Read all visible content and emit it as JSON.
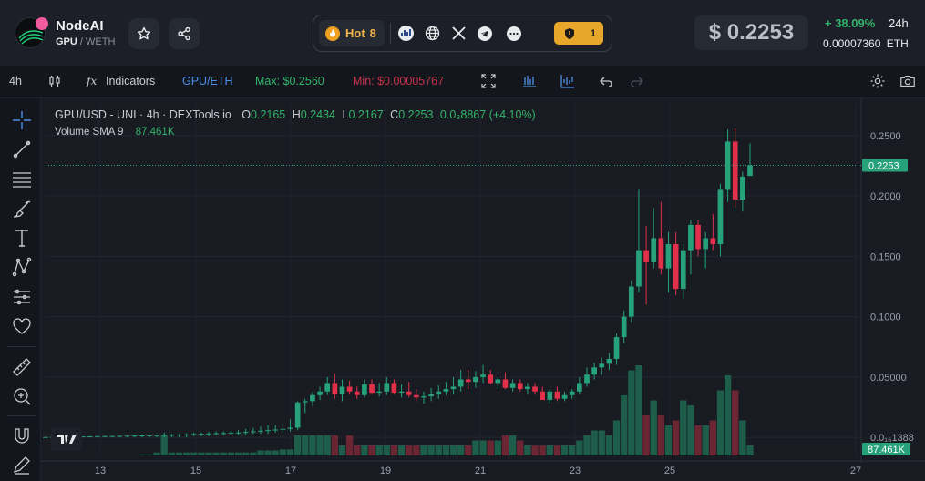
{
  "header": {
    "token_name": "NodeAI",
    "pair_base": "GPU",
    "pair_quote": "/ WETH",
    "hot_label": "Hot",
    "hot_rank": "8",
    "alert_count": "1",
    "price": "$ 0.2253",
    "change": "+ 38.09%",
    "change_period": "24h",
    "eth_price": "0.00007360",
    "eth_unit": "ETH",
    "colors": {
      "accent_green": "#33b36a",
      "accent_red": "#e0304a",
      "alert_yellow": "#e8a72a",
      "badge_pink": "#f25aa0"
    }
  },
  "toolbar": {
    "interval": "4h",
    "indicators_label": "Indicators",
    "pair_label": "GPU/ETH",
    "max_label": "Max: $0.2560",
    "min_label": "Min: $0.00005767"
  },
  "chart_title": {
    "symbol": "GPU/USD - UNI · 4h · DEXTools.io",
    "o_label": "O",
    "o": "0.2165",
    "h_label": "H",
    "h": "0.2434",
    "l_label": "L",
    "l": "0.2167",
    "c_label": "C",
    "c": "0.2253",
    "delta": "0.0₃8867 (+4.10%)",
    "volume_label": "Volume SMA 9",
    "volume_value": "87.461K"
  },
  "chart_data": {
    "type": "candlestick",
    "title": "GPU/USD - UNI · 4h · DEXTools.io",
    "x_tick_labels": [
      "13",
      "15",
      "17",
      "19",
      "21",
      "23",
      "25",
      "27"
    ],
    "y_tick_labels": [
      "0.2500",
      "0.2000",
      "0.1500",
      "0.1000",
      "0.05000",
      "0.0₁₆1388"
    ],
    "y_ticks": [
      0.25,
      0.2,
      0.15,
      0.1,
      0.05,
      0.0
    ],
    "ylim": [
      -0.015,
      0.277
    ],
    "last_price": 0.2253,
    "last_price_label": "0.2253",
    "volume_label": "87.461K",
    "grid": true,
    "colors": {
      "up": "#26a17a",
      "down": "#e0304a",
      "volume_up": "#1e5d4a",
      "volume_down": "#6b2634"
    },
    "candles": [
      {
        "o": 0.0,
        "h": 0.0005,
        "l": 0.0,
        "c": 0.0003,
        "v": 0.0
      },
      {
        "o": 0.0003,
        "h": 0.0005,
        "l": 0.0,
        "c": 0.0004,
        "v": 0.0
      },
      {
        "o": 0.0004,
        "h": 0.0006,
        "l": 0.0,
        "c": 0.0005,
        "v": 0.0
      },
      {
        "o": 0.0005,
        "h": 0.0007,
        "l": 0.0,
        "c": 0.0006,
        "v": 0.0
      },
      {
        "o": 0.0006,
        "h": 0.0008,
        "l": 0.0,
        "c": 0.0007,
        "v": 0.0
      },
      {
        "o": 0.0007,
        "h": 0.0008,
        "l": 0.0,
        "c": 0.0008,
        "v": 0.0
      },
      {
        "o": 0.0008,
        "h": 0.0009,
        "l": 0.0,
        "c": 0.0009,
        "v": 0.0
      },
      {
        "o": 0.0009,
        "h": 0.001,
        "l": 0.0,
        "c": 0.001,
        "v": 0.0
      },
      {
        "o": 0.001,
        "h": 0.0011,
        "l": 0.0,
        "c": 0.0011,
        "v": 0.0
      },
      {
        "o": 0.0011,
        "h": 0.0012,
        "l": 0.0,
        "c": 0.0012,
        "v": 0.0
      },
      {
        "o": 0.0012,
        "h": 0.0013,
        "l": 0.0,
        "c": 0.0013,
        "v": 0.0
      },
      {
        "o": 0.0013,
        "h": 0.0014,
        "l": 0.0,
        "c": 0.0014,
        "v": 0.0
      },
      {
        "o": 0.0014,
        "h": 0.0015,
        "l": 0.0,
        "c": 0.0015,
        "v": 0.0
      },
      {
        "o": 0.0015,
        "h": 0.0016,
        "l": 0.0,
        "c": 0.0016,
        "v": 0.01
      },
      {
        "o": 0.0016,
        "h": 0.0017,
        "l": 0.0,
        "c": 0.0017,
        "v": 0.01
      },
      {
        "o": 0.0017,
        "h": 0.0018,
        "l": 0.0,
        "c": 0.0018,
        "v": 0.03
      },
      {
        "o": 0.0018,
        "h": 0.004,
        "l": 0.0,
        "c": 0.002,
        "v": 0.2
      },
      {
        "o": 0.002,
        "h": 0.003,
        "l": 0.0,
        "c": 0.0021,
        "v": 0.03
      },
      {
        "o": 0.0021,
        "h": 0.003,
        "l": 0.0,
        "c": 0.0023,
        "v": 0.03
      },
      {
        "o": 0.0023,
        "h": 0.0035,
        "l": 0.0,
        "c": 0.0024,
        "v": 0.03
      },
      {
        "o": 0.0024,
        "h": 0.004,
        "l": 0.001,
        "c": 0.0028,
        "v": 0.03
      },
      {
        "o": 0.0028,
        "h": 0.004,
        "l": 0.001,
        "c": 0.003,
        "v": 0.03
      },
      {
        "o": 0.003,
        "h": 0.0045,
        "l": 0.001,
        "c": 0.0032,
        "v": 0.03
      },
      {
        "o": 0.0032,
        "h": 0.005,
        "l": 0.002,
        "c": 0.0034,
        "v": 0.03
      },
      {
        "o": 0.0034,
        "h": 0.005,
        "l": 0.002,
        "c": 0.0036,
        "v": 0.03
      },
      {
        "o": 0.0036,
        "h": 0.0055,
        "l": 0.002,
        "c": 0.0038,
        "v": 0.03
      },
      {
        "o": 0.0038,
        "h": 0.006,
        "l": 0.002,
        "c": 0.004,
        "v": 0.03
      },
      {
        "o": 0.004,
        "h": 0.007,
        "l": 0.002,
        "c": 0.0045,
        "v": 0.03
      },
      {
        "o": 0.0045,
        "h": 0.008,
        "l": 0.003,
        "c": 0.005,
        "v": 0.03
      },
      {
        "o": 0.005,
        "h": 0.009,
        "l": 0.003,
        "c": 0.0055,
        "v": 0.05
      },
      {
        "o": 0.0055,
        "h": 0.01,
        "l": 0.003,
        "c": 0.006,
        "v": 0.05
      },
      {
        "o": 0.006,
        "h": 0.01,
        "l": 0.004,
        "c": 0.0065,
        "v": 0.05
      },
      {
        "o": 0.0065,
        "h": 0.012,
        "l": 0.004,
        "c": 0.007,
        "v": 0.06
      },
      {
        "o": 0.007,
        "h": 0.015,
        "l": 0.005,
        "c": 0.008,
        "v": 0.06
      },
      {
        "o": 0.008,
        "h": 0.03,
        "l": 0.006,
        "c": 0.029,
        "v": 0.2
      },
      {
        "o": 0.029,
        "h": 0.032,
        "l": 0.02,
        "c": 0.03,
        "v": 0.2
      },
      {
        "o": 0.03,
        "h": 0.038,
        "l": 0.026,
        "c": 0.035,
        "v": 0.2
      },
      {
        "o": 0.035,
        "h": 0.042,
        "l": 0.031,
        "c": 0.038,
        "v": 0.2
      },
      {
        "o": 0.038,
        "h": 0.05,
        "l": 0.035,
        "c": 0.045,
        "v": 0.2
      },
      {
        "o": 0.045,
        "h": 0.053,
        "l": 0.032,
        "c": 0.036,
        "v": 0.2
      },
      {
        "o": 0.036,
        "h": 0.048,
        "l": 0.03,
        "c": 0.042,
        "v": 0.1
      },
      {
        "o": 0.042,
        "h": 0.047,
        "l": 0.036,
        "c": 0.038,
        "v": 0.2
      },
      {
        "o": 0.038,
        "h": 0.042,
        "l": 0.032,
        "c": 0.035,
        "v": 0.1
      },
      {
        "o": 0.035,
        "h": 0.048,
        "l": 0.033,
        "c": 0.044,
        "v": 0.1
      },
      {
        "o": 0.044,
        "h": 0.048,
        "l": 0.036,
        "c": 0.037,
        "v": 0.1
      },
      {
        "o": 0.037,
        "h": 0.045,
        "l": 0.034,
        "c": 0.038,
        "v": 0.1
      },
      {
        "o": 0.038,
        "h": 0.05,
        "l": 0.035,
        "c": 0.045,
        "v": 0.1
      },
      {
        "o": 0.045,
        "h": 0.048,
        "l": 0.036,
        "c": 0.037,
        "v": 0.1
      },
      {
        "o": 0.037,
        "h": 0.044,
        "l": 0.033,
        "c": 0.038,
        "v": 0.1
      },
      {
        "o": 0.038,
        "h": 0.046,
        "l": 0.033,
        "c": 0.035,
        "v": 0.1
      },
      {
        "o": 0.035,
        "h": 0.04,
        "l": 0.03,
        "c": 0.033,
        "v": 0.1
      },
      {
        "o": 0.033,
        "h": 0.038,
        "l": 0.028,
        "c": 0.034,
        "v": 0.1
      },
      {
        "o": 0.034,
        "h": 0.041,
        "l": 0.03,
        "c": 0.036,
        "v": 0.1
      },
      {
        "o": 0.036,
        "h": 0.043,
        "l": 0.032,
        "c": 0.038,
        "v": 0.1
      },
      {
        "o": 0.038,
        "h": 0.046,
        "l": 0.035,
        "c": 0.04,
        "v": 0.1
      },
      {
        "o": 0.04,
        "h": 0.05,
        "l": 0.036,
        "c": 0.042,
        "v": 0.1
      },
      {
        "o": 0.042,
        "h": 0.056,
        "l": 0.038,
        "c": 0.048,
        "v": 0.1
      },
      {
        "o": 0.048,
        "h": 0.056,
        "l": 0.04,
        "c": 0.046,
        "v": 0.1
      },
      {
        "o": 0.046,
        "h": 0.055,
        "l": 0.041,
        "c": 0.05,
        "v": 0.15
      },
      {
        "o": 0.05,
        "h": 0.06,
        "l": 0.045,
        "c": 0.052,
        "v": 0.15
      },
      {
        "o": 0.052,
        "h": 0.056,
        "l": 0.044,
        "c": 0.045,
        "v": 0.15
      },
      {
        "o": 0.045,
        "h": 0.05,
        "l": 0.04,
        "c": 0.048,
        "v": 0.15
      },
      {
        "o": 0.048,
        "h": 0.054,
        "l": 0.04,
        "c": 0.041,
        "v": 0.2
      },
      {
        "o": 0.041,
        "h": 0.048,
        "l": 0.038,
        "c": 0.045,
        "v": 0.2
      },
      {
        "o": 0.045,
        "h": 0.048,
        "l": 0.038,
        "c": 0.04,
        "v": 0.15
      },
      {
        "o": 0.04,
        "h": 0.045,
        "l": 0.036,
        "c": 0.042,
        "v": 0.1
      },
      {
        "o": 0.042,
        "h": 0.045,
        "l": 0.036,
        "c": 0.038,
        "v": 0.1
      },
      {
        "o": 0.038,
        "h": 0.042,
        "l": 0.031,
        "c": 0.031,
        "v": 0.1
      },
      {
        "o": 0.031,
        "h": 0.04,
        "l": 0.028,
        "c": 0.038,
        "v": 0.1
      },
      {
        "o": 0.038,
        "h": 0.042,
        "l": 0.03,
        "c": 0.032,
        "v": 0.1
      },
      {
        "o": 0.032,
        "h": 0.038,
        "l": 0.03,
        "c": 0.035,
        "v": 0.1
      },
      {
        "o": 0.035,
        "h": 0.04,
        "l": 0.032,
        "c": 0.038,
        "v": 0.1
      },
      {
        "o": 0.038,
        "h": 0.05,
        "l": 0.036,
        "c": 0.045,
        "v": 0.15
      },
      {
        "o": 0.045,
        "h": 0.058,
        "l": 0.042,
        "c": 0.052,
        "v": 0.2
      },
      {
        "o": 0.052,
        "h": 0.062,
        "l": 0.048,
        "c": 0.058,
        "v": 0.25
      },
      {
        "o": 0.058,
        "h": 0.066,
        "l": 0.052,
        "c": 0.061,
        "v": 0.25
      },
      {
        "o": 0.061,
        "h": 0.07,
        "l": 0.056,
        "c": 0.065,
        "v": 0.2
      },
      {
        "o": 0.065,
        "h": 0.086,
        "l": 0.06,
        "c": 0.083,
        "v": 0.35
      },
      {
        "o": 0.083,
        "h": 0.105,
        "l": 0.078,
        "c": 0.1,
        "v": 0.6
      },
      {
        "o": 0.1,
        "h": 0.13,
        "l": 0.095,
        "c": 0.125,
        "v": 0.85
      },
      {
        "o": 0.125,
        "h": 0.205,
        "l": 0.12,
        "c": 0.155,
        "v": 0.9
      },
      {
        "o": 0.155,
        "h": 0.175,
        "l": 0.11,
        "c": 0.145,
        "v": 0.4
      },
      {
        "o": 0.145,
        "h": 0.19,
        "l": 0.14,
        "c": 0.165,
        "v": 0.55
      },
      {
        "o": 0.165,
        "h": 0.195,
        "l": 0.135,
        "c": 0.14,
        "v": 0.4
      },
      {
        "o": 0.14,
        "h": 0.17,
        "l": 0.12,
        "c": 0.16,
        "v": 0.3
      },
      {
        "o": 0.16,
        "h": 0.17,
        "l": 0.118,
        "c": 0.123,
        "v": 0.35
      },
      {
        "o": 0.123,
        "h": 0.16,
        "l": 0.115,
        "c": 0.155,
        "v": 0.55
      },
      {
        "o": 0.155,
        "h": 0.18,
        "l": 0.135,
        "c": 0.176,
        "v": 0.5
      },
      {
        "o": 0.176,
        "h": 0.18,
        "l": 0.15,
        "c": 0.156,
        "v": 0.3
      },
      {
        "o": 0.156,
        "h": 0.17,
        "l": 0.14,
        "c": 0.165,
        "v": 0.3
      },
      {
        "o": 0.165,
        "h": 0.185,
        "l": 0.155,
        "c": 0.16,
        "v": 0.35
      },
      {
        "o": 0.16,
        "h": 0.21,
        "l": 0.15,
        "c": 0.205,
        "v": 0.65
      },
      {
        "o": 0.205,
        "h": 0.255,
        "l": 0.195,
        "c": 0.245,
        "v": 0.8
      },
      {
        "o": 0.245,
        "h": 0.256,
        "l": 0.19,
        "c": 0.197,
        "v": 0.65
      },
      {
        "o": 0.197,
        "h": 0.22,
        "l": 0.187,
        "c": 0.216,
        "v": 0.35
      },
      {
        "o": 0.2165,
        "h": 0.2434,
        "l": 0.2167,
        "c": 0.2253,
        "v": 0.1
      }
    ]
  },
  "tools": [
    "crosshair-tool",
    "trendline-tool",
    "fib-tool",
    "brush-tool",
    "text-tool",
    "pattern-tool",
    "prediction-tool",
    "favorites-tool",
    "ruler-tool",
    "zoom-tool",
    "magnet-tool",
    "lock-drawing-tool"
  ]
}
